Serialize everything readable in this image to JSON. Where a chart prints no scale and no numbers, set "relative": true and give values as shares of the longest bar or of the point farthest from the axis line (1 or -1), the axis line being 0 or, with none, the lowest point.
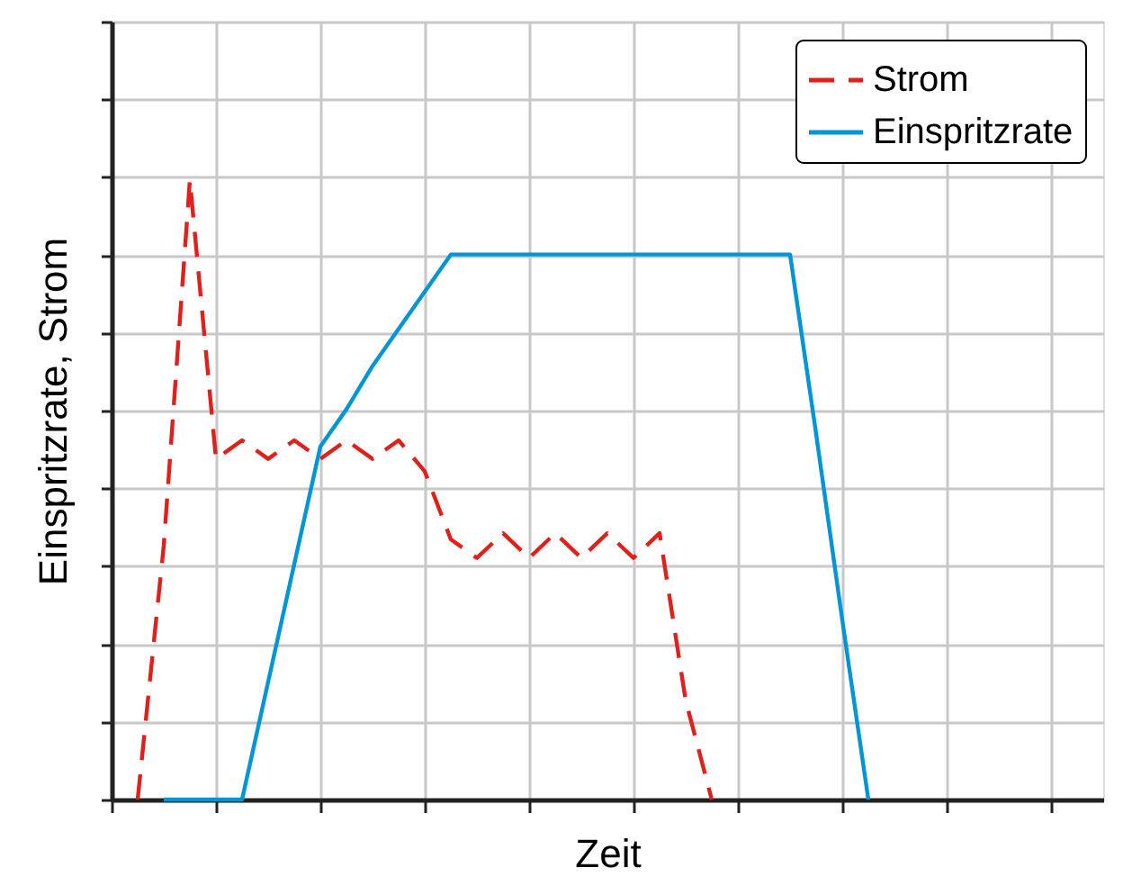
{
  "chart_data": {
    "type": "line",
    "relative": true,
    "xlabel": "Zeit",
    "ylabel": "Einspritzrate, Strom",
    "grid": true,
    "legend": "top right",
    "categories": [
      null,
      null,
      null,
      null,
      null,
      null,
      null,
      null,
      null,
      null,
      null,
      null,
      null,
      null,
      null,
      null,
      null,
      null,
      null,
      null,
      null,
      null,
      null,
      null,
      null,
      null,
      null,
      null,
      null,
      null,
      null,
      null,
      null,
      null,
      null,
      null,
      null,
      null,
      null
    ],
    "series": [
      {
        "name": "Strom",
        "color": "#e0201b",
        "line_style": "dashed",
        "values": [
          null,
          0,
          0.41,
          1.0,
          0.55,
          0.58,
          0.55,
          0.58,
          0.55,
          0.58,
          0.55,
          0.58,
          0.53,
          0.42,
          0.39,
          0.43,
          0.39,
          0.43,
          0.39,
          0.43,
          0.39,
          0.43,
          0.16,
          0,
          null,
          null,
          null,
          null,
          null,
          null,
          null,
          null,
          null,
          null,
          null,
          null,
          null,
          null,
          null
        ]
      },
      {
        "name": "Einspritzrate",
        "color": "#0096d6",
        "line_style": "solid",
        "values": [
          null,
          null,
          0,
          0,
          0,
          0,
          0.19,
          0.38,
          0.57,
          0.63,
          0.7,
          0.76,
          0.82,
          0.88,
          0.88,
          0.88,
          0.88,
          0.88,
          0.88,
          0.88,
          0.88,
          0.88,
          0.88,
          0.88,
          0.88,
          0.88,
          0.88,
          0.59,
          0.29,
          0,
          null,
          null,
          null,
          null,
          null,
          null,
          null,
          null,
          null
        ]
      }
    ]
  }
}
